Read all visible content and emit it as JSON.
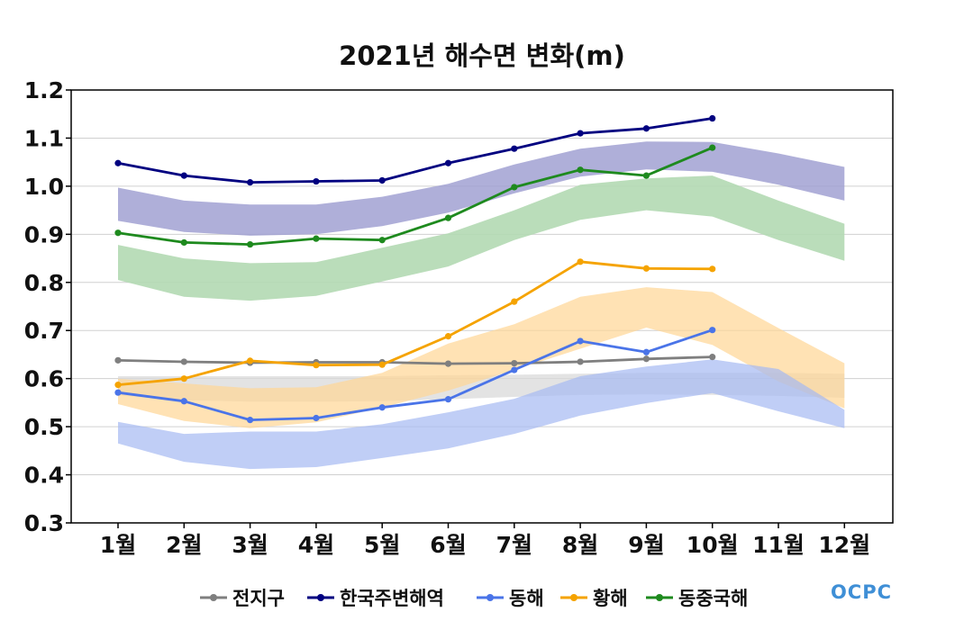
{
  "chart_data": {
    "type": "line",
    "title": "2021년 해수면 변화(m)",
    "categories": [
      "1월",
      "2월",
      "3월",
      "4월",
      "5월",
      "6월",
      "7월",
      "8월",
      "9월",
      "10월",
      "11월",
      "12월"
    ],
    "ylim": [
      0.3,
      1.2
    ],
    "yticks": [
      0.3,
      0.4,
      0.5,
      0.6,
      0.7,
      0.8,
      0.9,
      1.0,
      1.1,
      1.2
    ],
    "ytick_labels": [
      "0.3",
      "0.4",
      "0.5",
      "0.6",
      "0.7",
      "0.8",
      "0.9",
      "1.0",
      "1.1",
      "1.2"
    ],
    "grid": true,
    "legend_position": "bottom",
    "series": [
      {
        "name": "전지구",
        "color": "#7f7f7f",
        "values": [
          0.638,
          0.635,
          0.633,
          0.634,
          0.634,
          0.631,
          0.632,
          0.635,
          0.641,
          0.645,
          null,
          null
        ]
      },
      {
        "name": "한국주변해역",
        "color": "#000080",
        "values": [
          1.048,
          1.022,
          1.008,
          1.01,
          1.012,
          1.048,
          1.078,
          1.11,
          1.12,
          1.141,
          null,
          null
        ]
      },
      {
        "name": "동해",
        "color": "#4a74e8",
        "values": [
          0.571,
          0.553,
          0.514,
          0.518,
          0.54,
          0.557,
          0.618,
          0.678,
          0.655,
          0.701,
          null,
          null
        ]
      },
      {
        "name": "황해",
        "color": "#f5a300",
        "values": [
          0.587,
          0.6,
          0.637,
          0.628,
          0.629,
          0.688,
          0.76,
          0.843,
          0.829,
          0.828,
          null,
          null
        ]
      },
      {
        "name": "동중국해",
        "color": "#1e8a1e",
        "values": [
          0.903,
          0.883,
          0.879,
          0.891,
          0.888,
          0.934,
          0.998,
          1.034,
          1.022,
          1.08,
          null,
          null
        ]
      }
    ],
    "ranges": [
      {
        "color": "#d9d9d9",
        "opacity": 0.75,
        "lower": [
          0.565,
          0.555,
          0.552,
          0.552,
          0.553,
          0.557,
          0.562,
          0.566,
          0.567,
          0.566,
          0.564,
          0.56
        ],
        "upper": [
          0.605,
          0.605,
          0.605,
          0.605,
          0.605,
          0.607,
          0.608,
          0.61,
          0.612,
          0.612,
          0.612,
          0.61
        ]
      },
      {
        "color": "#9b9bcf",
        "opacity": 0.8,
        "lower": [
          0.928,
          0.905,
          0.897,
          0.9,
          0.917,
          0.945,
          0.985,
          1.02,
          1.035,
          1.03,
          1.003,
          0.97
        ],
        "upper": [
          0.997,
          0.97,
          0.962,
          0.962,
          0.978,
          1.005,
          1.045,
          1.078,
          1.093,
          1.092,
          1.068,
          1.04
        ]
      },
      {
        "color": "#b3d9b3",
        "opacity": 0.9,
        "lower": [
          0.805,
          0.77,
          0.762,
          0.772,
          0.802,
          0.833,
          0.888,
          0.93,
          0.95,
          0.937,
          0.888,
          0.845
        ],
        "upper": [
          0.878,
          0.85,
          0.84,
          0.842,
          0.872,
          0.902,
          0.95,
          1.003,
          1.016,
          1.022,
          0.97,
          0.922
        ]
      },
      {
        "color": "#ffd694",
        "opacity": 0.7,
        "lower": [
          0.547,
          0.512,
          0.497,
          0.509,
          0.54,
          0.575,
          0.618,
          0.662,
          0.706,
          0.67,
          0.594,
          0.538
        ],
        "upper": [
          0.6,
          0.59,
          0.58,
          0.582,
          0.612,
          0.673,
          0.713,
          0.77,
          0.79,
          0.78,
          0.705,
          0.632
        ]
      },
      {
        "color": "#a5b9f2",
        "opacity": 0.7,
        "lower": [
          0.465,
          0.427,
          0.412,
          0.416,
          0.435,
          0.455,
          0.485,
          0.523,
          0.549,
          0.57,
          0.532,
          0.497
        ],
        "upper": [
          0.51,
          0.485,
          0.49,
          0.49,
          0.505,
          0.53,
          0.558,
          0.605,
          0.625,
          0.64,
          0.62,
          0.535
        ]
      }
    ]
  },
  "logo": {
    "text": "OCPC"
  }
}
